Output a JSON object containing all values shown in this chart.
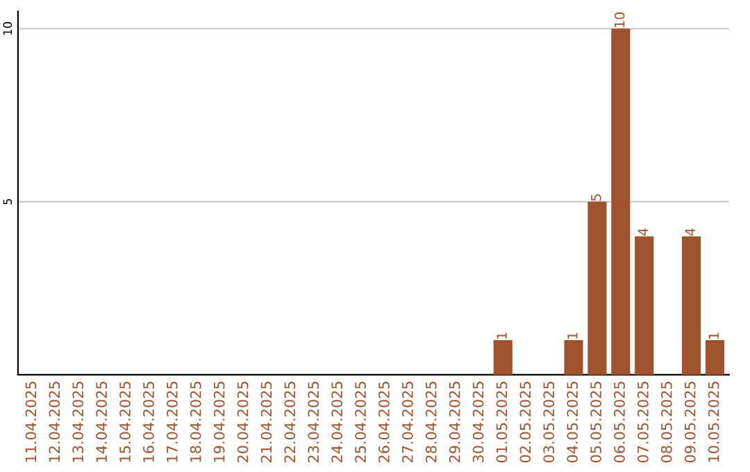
{
  "chart_data": {
    "type": "bar",
    "categories": [
      "11.04.2025",
      "12.04.2025",
      "13.04.2025",
      "14.04.2025",
      "15.04.2025",
      "16.04.2025",
      "17.04.2025",
      "18.04.2025",
      "19.04.2025",
      "20.04.2025",
      "21.04.2025",
      "22.04.2025",
      "23.04.2025",
      "24.04.2025",
      "25.04.2025",
      "26.04.2025",
      "27.04.2025",
      "28.04.2025",
      "29.04.2025",
      "30.04.2025",
      "01.05.2025",
      "02.05.2025",
      "03.05.2025",
      "04.05.2025",
      "05.05.2025",
      "06.05.2025",
      "07.05.2025",
      "08.05.2025",
      "09.05.2025",
      "10.05.2025"
    ],
    "values": [
      0,
      0,
      0,
      0,
      0,
      0,
      0,
      0,
      0,
      0,
      0,
      0,
      0,
      0,
      0,
      0,
      0,
      0,
      0,
      0,
      1,
      0,
      0,
      1,
      5,
      10,
      4,
      0,
      4,
      1
    ],
    "value_labels": [
      null,
      null,
      null,
      null,
      null,
      null,
      null,
      null,
      null,
      null,
      null,
      null,
      null,
      null,
      null,
      null,
      null,
      null,
      null,
      null,
      "1",
      null,
      null,
      "1",
      "5",
      "10",
      "4",
      null,
      "4",
      "1"
    ],
    "color": "#a0522d",
    "ylim": [
      0,
      10.5
    ],
    "yticks": [
      5,
      10
    ],
    "grid": "y",
    "legend": false
  }
}
